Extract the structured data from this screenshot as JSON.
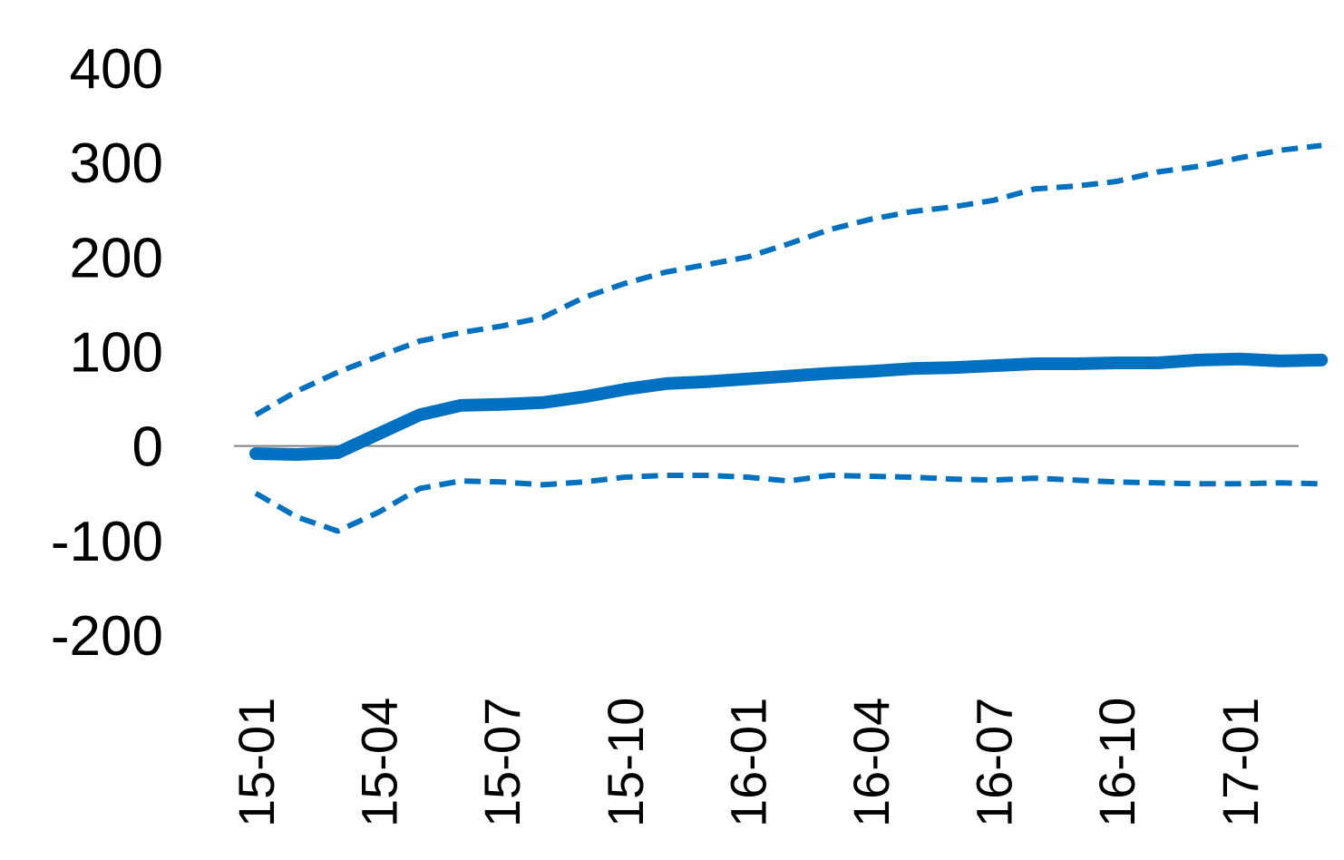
{
  "chart_data": {
    "type": "line",
    "title": "",
    "xlabel": "",
    "ylabel": "",
    "ylim": [
      -200,
      400
    ],
    "y_ticks": [
      "400",
      "300",
      "200",
      "100",
      "0",
      "-100",
      "-200"
    ],
    "y_tick_values": [
      400,
      300,
      200,
      100,
      0,
      -100,
      -200
    ],
    "x_tick_labels": [
      "15-01",
      "15-04",
      "15-07",
      "15-10",
      "16-01",
      "16-04",
      "16-07",
      "16-10",
      "17-01"
    ],
    "x_tick_indices": [
      0,
      3,
      6,
      9,
      12,
      15,
      18,
      21,
      24
    ],
    "x": [
      "15-01",
      "15-02",
      "15-03",
      "15-04",
      "15-05",
      "15-06",
      "15-07",
      "15-08",
      "15-09",
      "15-10",
      "15-11",
      "15-12",
      "16-01",
      "16-02",
      "16-03",
      "16-04",
      "16-05",
      "16-06",
      "16-07",
      "16-08",
      "16-09",
      "16-10",
      "16-11",
      "16-12",
      "17-01",
      "17-02",
      "17-03"
    ],
    "zero_line": true,
    "grid": false,
    "legend": "none",
    "series": [
      {
        "style": "solid",
        "color": "#0070C0",
        "values": [
          -8,
          -9,
          -7,
          13,
          33,
          43,
          44,
          46,
          52,
          60,
          66,
          68,
          71,
          74,
          77,
          79,
          82,
          83,
          85,
          87,
          87,
          88,
          88,
          91,
          92,
          90,
          91
        ]
      },
      {
        "style": "dashed",
        "color": "#0070C0",
        "values": [
          33,
          58,
          78,
          95,
          111,
          120,
          127,
          136,
          157,
          172,
          184,
          192,
          200,
          214,
          229,
          240,
          248,
          253,
          260,
          272,
          275,
          280,
          290,
          296,
          305,
          313,
          318
        ]
      },
      {
        "style": "dashed",
        "color": "#0070C0",
        "values": [
          -50,
          -75,
          -90,
          -70,
          -45,
          -37,
          -38,
          -41,
          -38,
          -33,
          -31,
          -31,
          -33,
          -37,
          -31,
          -32,
          -33,
          -35,
          -36,
          -34,
          -36,
          -38,
          -39,
          -40,
          -40,
          -39,
          -40
        ]
      }
    ]
  },
  "colors": {
    "series": "#0070C0",
    "zero_line": "#808080",
    "text": "#000000"
  }
}
